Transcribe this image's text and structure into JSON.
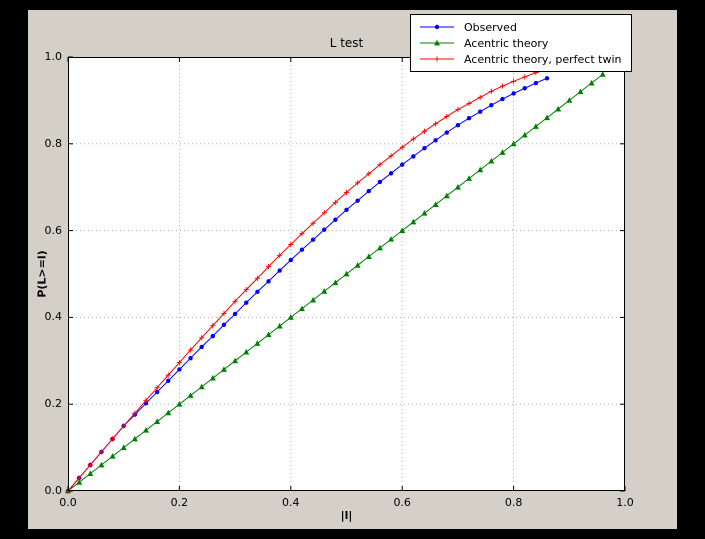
{
  "colors": {
    "frame_bg": "#000000",
    "figure_bg": "#d4d0c8",
    "plot_bg": "#ffffff",
    "grid": "#b0b0b0",
    "axis": "#000000",
    "observed": "#0000ff",
    "acentric_theory": "#008000",
    "perfect_twin": "#ff0000"
  },
  "chart_data": {
    "type": "line",
    "title": "L test",
    "xlabel": "|l|",
    "ylabel": "P(L>=l)",
    "xlim": [
      0.0,
      1.0
    ],
    "ylim": [
      0.0,
      1.0
    ],
    "xticks": [
      0.0,
      0.2,
      0.4,
      0.6,
      0.8,
      1.0
    ],
    "xtick_labels": [
      "0.0",
      "0.2",
      "0.4",
      "0.6",
      "0.8",
      "1.0"
    ],
    "yticks": [
      0.0,
      0.2,
      0.4,
      0.6,
      0.8,
      1.0
    ],
    "ytick_labels": [
      "0.0",
      "0.2",
      "0.4",
      "0.6",
      "0.8",
      "1.0"
    ],
    "grid": "dotted",
    "legend_position": "upper right",
    "series": [
      {
        "name": "Observed",
        "color": "#0000ff",
        "marker": "circle",
        "x": [
          0,
          0.02,
          0.04,
          0.06,
          0.08,
          0.1,
          0.12,
          0.14,
          0.16,
          0.18,
          0.2,
          0.22,
          0.24,
          0.26,
          0.28,
          0.3,
          0.32,
          0.34,
          0.36,
          0.38,
          0.4,
          0.42,
          0.44,
          0.46,
          0.48,
          0.5,
          0.52,
          0.54,
          0.56,
          0.58,
          0.6,
          0.62,
          0.64,
          0.66,
          0.68,
          0.7,
          0.72,
          0.74,
          0.76,
          0.78,
          0.8,
          0.82,
          0.84,
          0.86
        ],
        "y": [
          0,
          0.03,
          0.06,
          0.09,
          0.12,
          0.15,
          0.176,
          0.202,
          0.228,
          0.254,
          0.28,
          0.306,
          0.332,
          0.357,
          0.383,
          0.408,
          0.434,
          0.459,
          0.483,
          0.508,
          0.532,
          0.556,
          0.579,
          0.602,
          0.625,
          0.648,
          0.669,
          0.691,
          0.712,
          0.732,
          0.752,
          0.771,
          0.79,
          0.808,
          0.826,
          0.843,
          0.859,
          0.874,
          0.889,
          0.903,
          0.916,
          0.928,
          0.94,
          0.951
        ]
      },
      {
        "name": "Acentric theory",
        "color": "#008000",
        "marker": "triangle",
        "x": [
          0,
          0.02,
          0.04,
          0.06,
          0.08,
          0.1,
          0.12,
          0.14,
          0.16,
          0.18,
          0.2,
          0.22,
          0.24,
          0.26,
          0.28,
          0.3,
          0.32,
          0.34,
          0.36,
          0.38,
          0.4,
          0.42,
          0.44,
          0.46,
          0.48,
          0.5,
          0.52,
          0.54,
          0.56,
          0.58,
          0.6,
          0.62,
          0.64,
          0.66,
          0.68,
          0.7,
          0.72,
          0.74,
          0.76,
          0.78,
          0.8,
          0.82,
          0.84,
          0.86,
          0.88,
          0.9,
          0.92,
          0.94,
          0.96
        ],
        "y": [
          0,
          0.02,
          0.04,
          0.06,
          0.08,
          0.1,
          0.12,
          0.14,
          0.16,
          0.18,
          0.2,
          0.22,
          0.24,
          0.26,
          0.28,
          0.3,
          0.32,
          0.34,
          0.36,
          0.38,
          0.4,
          0.42,
          0.44,
          0.46,
          0.48,
          0.5,
          0.52,
          0.54,
          0.56,
          0.58,
          0.6,
          0.62,
          0.64,
          0.66,
          0.68,
          0.7,
          0.72,
          0.74,
          0.76,
          0.78,
          0.8,
          0.82,
          0.84,
          0.86,
          0.88,
          0.9,
          0.92,
          0.94,
          0.96
        ]
      },
      {
        "name": "Acentric theory, perfect twin",
        "color": "#ff0000",
        "marker": "plus",
        "x": [
          0,
          0.02,
          0.04,
          0.06,
          0.08,
          0.1,
          0.12,
          0.14,
          0.16,
          0.18,
          0.2,
          0.22,
          0.24,
          0.26,
          0.28,
          0.3,
          0.32,
          0.34,
          0.36,
          0.38,
          0.4,
          0.42,
          0.44,
          0.46,
          0.48,
          0.5,
          0.52,
          0.54,
          0.56,
          0.58,
          0.6,
          0.62,
          0.64,
          0.66,
          0.68,
          0.7,
          0.72,
          0.74,
          0.76,
          0.78,
          0.8,
          0.82,
          0.84,
          0.86
        ],
        "y": [
          0,
          0.03,
          0.06,
          0.09,
          0.12,
          0.15,
          0.179,
          0.209,
          0.238,
          0.267,
          0.296,
          0.325,
          0.353,
          0.381,
          0.409,
          0.437,
          0.464,
          0.49,
          0.517,
          0.543,
          0.568,
          0.593,
          0.617,
          0.641,
          0.665,
          0.688,
          0.71,
          0.731,
          0.752,
          0.772,
          0.792,
          0.811,
          0.829,
          0.846,
          0.863,
          0.879,
          0.893,
          0.907,
          0.921,
          0.933,
          0.944,
          0.954,
          0.964,
          0.972
        ]
      }
    ]
  }
}
